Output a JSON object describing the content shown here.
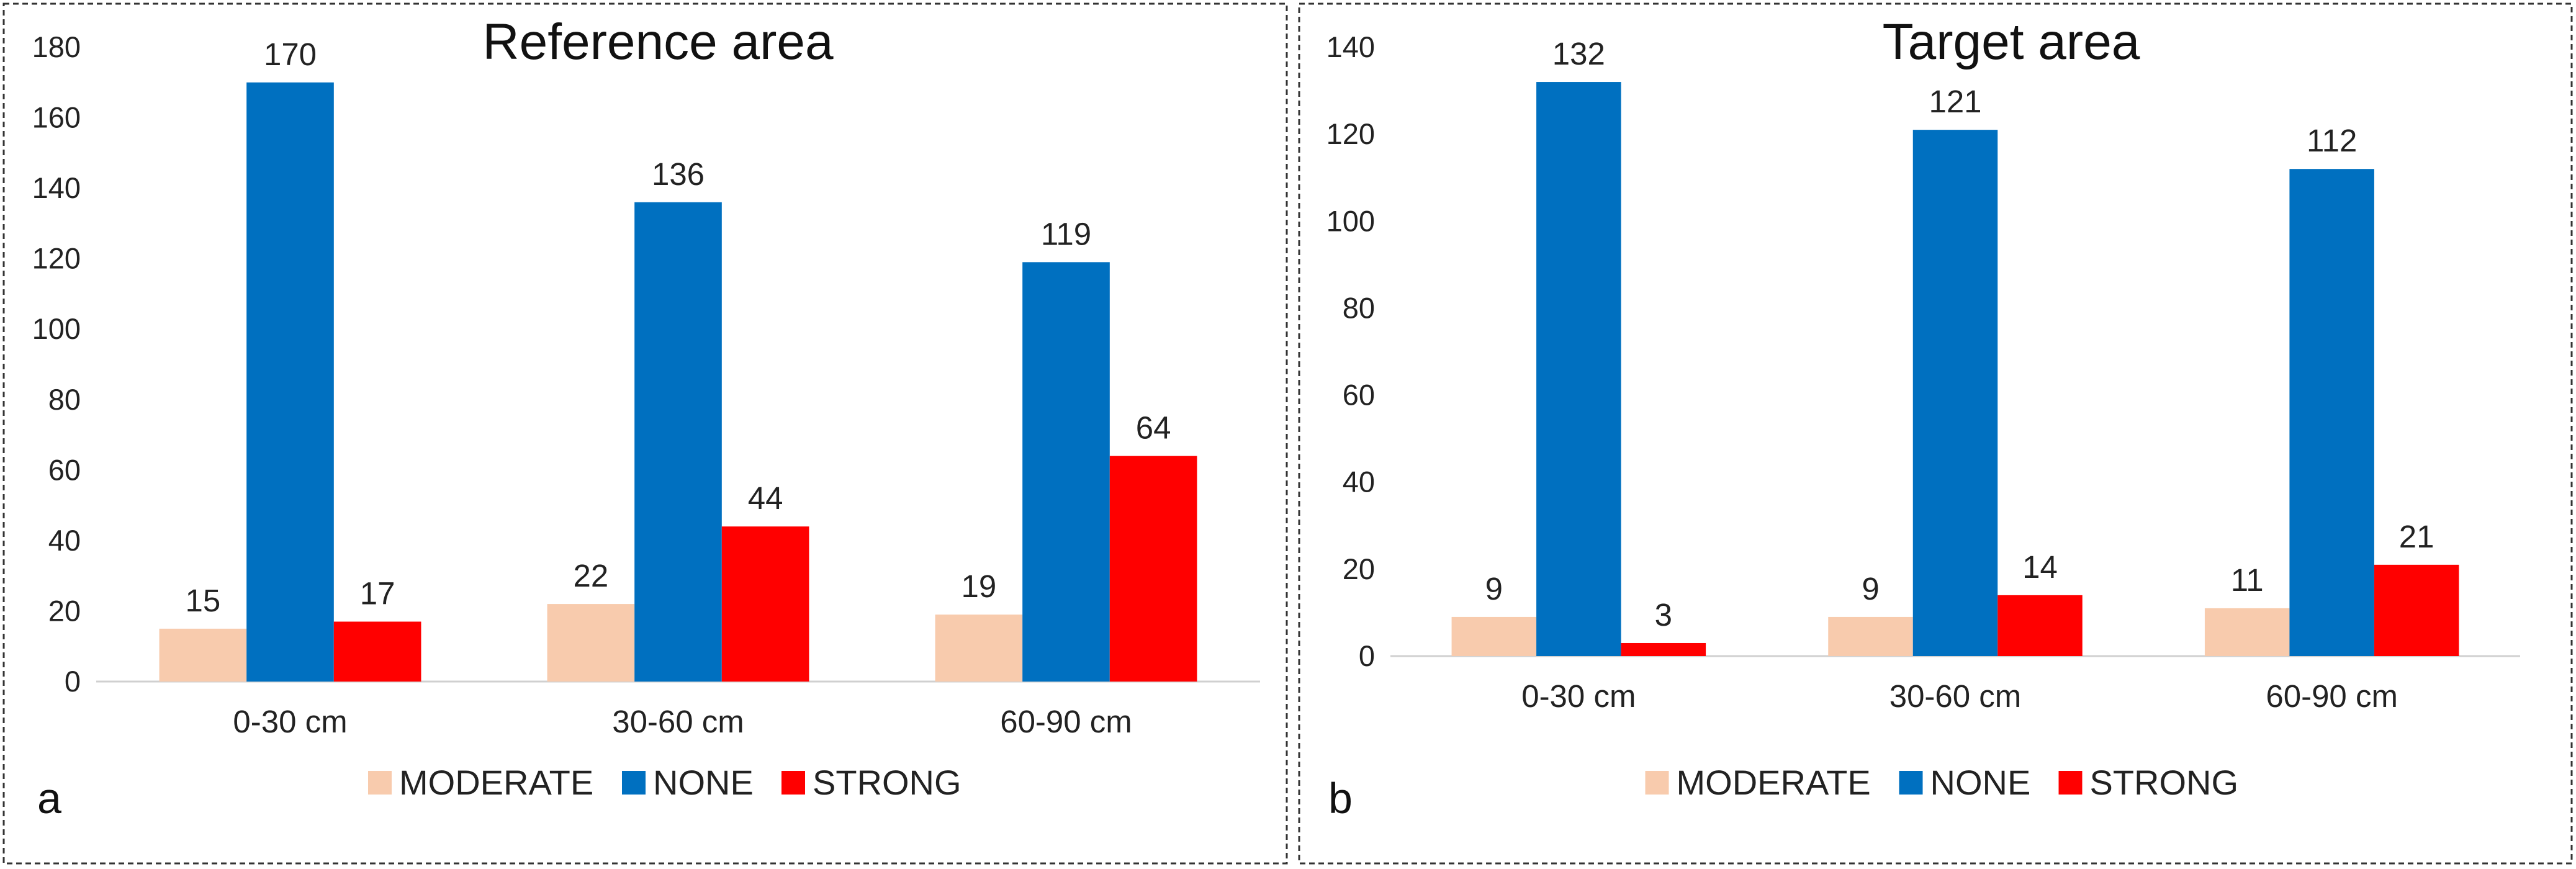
{
  "colors": {
    "MODERATE": "#f8cbad",
    "NONE": "#0070c0",
    "STRONG": "#ff0000",
    "axis": "#d0d0d0",
    "frame": "#333333"
  },
  "chart_data": [
    {
      "type": "bar",
      "panel": "a",
      "title": "Reference area",
      "categories": [
        "0-30 cm",
        "30-60 cm",
        "60-90 cm"
      ],
      "series": [
        {
          "name": "MODERATE",
          "values": [
            15,
            22,
            19
          ]
        },
        {
          "name": "NONE",
          "values": [
            170,
            136,
            119
          ]
        },
        {
          "name": "STRONG",
          "values": [
            17,
            44,
            64
          ]
        }
      ],
      "ylim": [
        0,
        180
      ],
      "yticks": [
        0,
        20,
        40,
        60,
        80,
        100,
        120,
        140,
        160,
        180
      ],
      "xlabel": "",
      "ylabel": "",
      "grid": false,
      "legend": "bottom"
    },
    {
      "type": "bar",
      "panel": "b",
      "title": "Target area",
      "categories": [
        "0-30 cm",
        "30-60 cm",
        "60-90 cm"
      ],
      "series": [
        {
          "name": "MODERATE",
          "values": [
            9,
            9,
            11
          ]
        },
        {
          "name": "NONE",
          "values": [
            132,
            121,
            112
          ]
        },
        {
          "name": "STRONG",
          "values": [
            3,
            14,
            21
          ]
        }
      ],
      "ylim": [
        0,
        140
      ],
      "yticks": [
        0,
        20,
        40,
        60,
        80,
        100,
        120,
        140
      ],
      "xlabel": "",
      "ylabel": "",
      "grid": false,
      "legend": "bottom"
    }
  ]
}
